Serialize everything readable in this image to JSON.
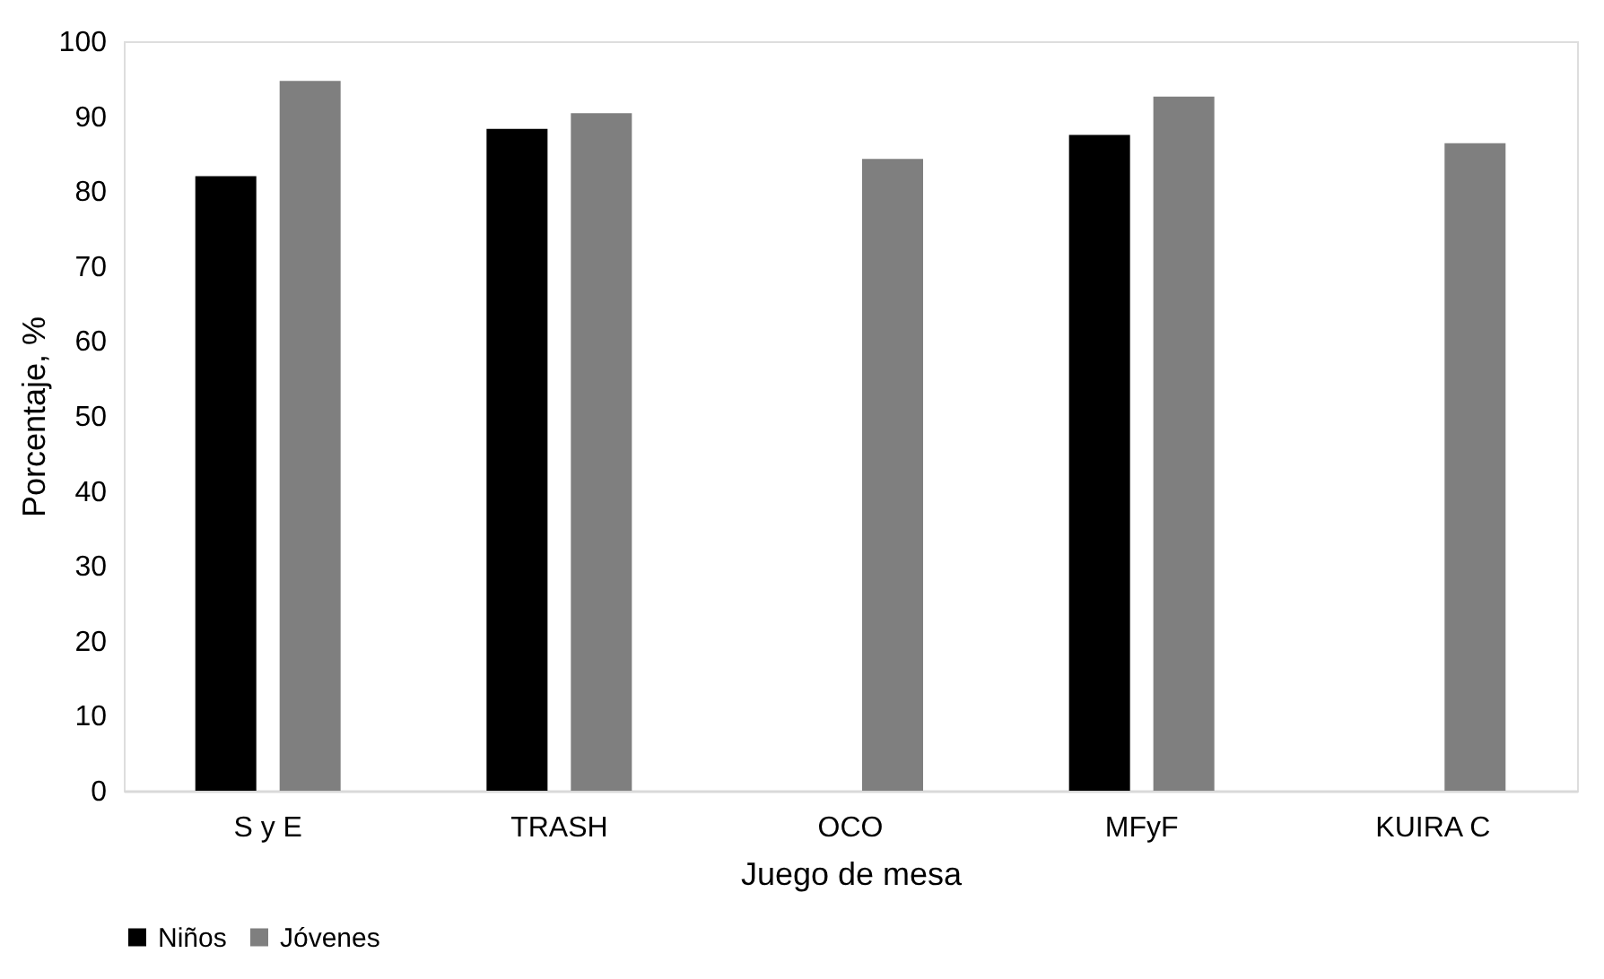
{
  "chart_data": {
    "type": "bar",
    "xlabel": "Juego de mesa",
    "ylabel": "Porcentaje, %",
    "categories": [
      "S y E",
      "TRASH",
      "OCO",
      "MFyF",
      "KUIRA C"
    ],
    "series": [
      {
        "name": "Niños",
        "color": "#000000",
        "values": [
          82,
          88.3,
          null,
          87.5,
          null
        ]
      },
      {
        "name": "Jóvenes",
        "color": "#7f7f7f",
        "values": [
          94.7,
          90.4,
          84.3,
          92.6,
          86.4
        ]
      }
    ],
    "ylim": [
      0,
      100
    ],
    "yticks": [
      0,
      10,
      20,
      30,
      40,
      50,
      60,
      70,
      80,
      90,
      100
    ],
    "grid": false,
    "legend": "bottom"
  }
}
